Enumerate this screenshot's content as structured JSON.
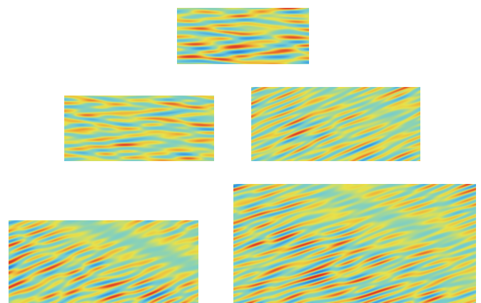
{
  "figure": {
    "colormap": [
      "#1f4fc2",
      "#3b9ee6",
      "#6fcad6",
      "#8fd3b0",
      "#e8e24a",
      "#f0b33a",
      "#e0452a",
      "#c21d1d"
    ],
    "background": "#ffffff",
    "panels": [
      {
        "id": "panel-1",
        "label": "",
        "streaks": "horizontal",
        "band_strength": 0.0,
        "seed": 11
      },
      {
        "id": "panel-2",
        "label": "",
        "streaks": "horizontal",
        "band_strength": 0.15,
        "seed": 23
      },
      {
        "id": "panel-3",
        "label": "",
        "streaks": "inclined",
        "band_strength": 0.55,
        "seed": 37
      },
      {
        "id": "panel-4",
        "label": "",
        "streaks": "inclined",
        "band_strength": 0.75,
        "seed": 51
      },
      {
        "id": "panel-5",
        "label": "",
        "streaks": "inclined",
        "band_strength": 0.65,
        "seed": 73
      }
    ]
  }
}
